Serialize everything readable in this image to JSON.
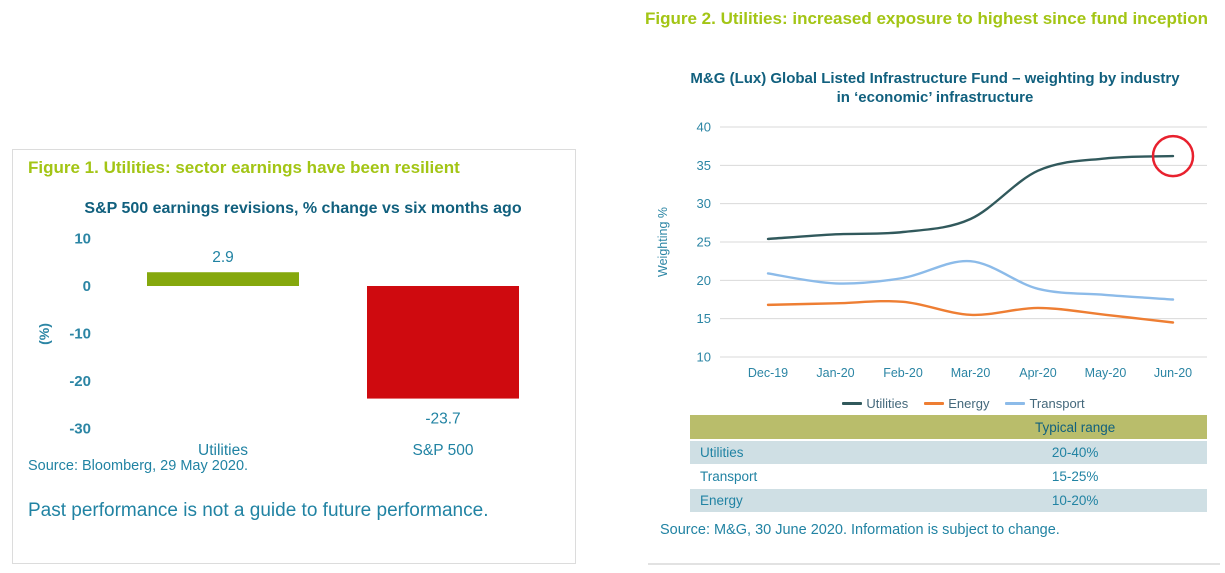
{
  "figure1": {
    "title": "Figure 1. Utilities: sector earnings have been resilient",
    "source": "Source: Bloomberg, 29 May 2020.",
    "disclaimer": "Past performance is not a guide to future performance."
  },
  "figure2": {
    "title": "Figure 2. Utilities: increased exposure to highest since fund inception",
    "table": {
      "header": [
        "",
        "Typical range"
      ],
      "rows": [
        [
          "Utilities",
          "20-40%"
        ],
        [
          "Transport",
          "15-25%"
        ],
        [
          "Energy",
          "10-20%"
        ]
      ]
    },
    "source": "Source: M&G, 30 June 2020. Information is subject to change."
  },
  "chart_data": [
    {
      "type": "bar",
      "title": "S&P 500 earnings revisions, % change vs six months ago",
      "categories": [
        "Utilities",
        "S&P 500"
      ],
      "values": [
        2.9,
        -23.7
      ],
      "data_labels": [
        "2.9",
        "-23.7"
      ],
      "bar_colors": [
        "#85a80d",
        "#cf0a0f"
      ],
      "ylabel": "(%)",
      "yticks": [
        10,
        0,
        -10,
        -20,
        -30
      ],
      "ylim": [
        -30,
        10
      ],
      "grid": false,
      "legend_position": "none"
    },
    {
      "type": "line",
      "title": "M&G (Lux) Global Listed Infrastructure Fund – weighting by industry in ‘economic’ infrastructure",
      "x": [
        "Dec-19",
        "Jan-20",
        "Feb-20",
        "Mar-20",
        "Apr-20",
        "May-20",
        "Jun-20"
      ],
      "series": [
        {
          "name": "Utilities",
          "color": "#31595c",
          "values": [
            25.4,
            26.0,
            26.3,
            28.0,
            34.3,
            35.9,
            36.2
          ]
        },
        {
          "name": "Energy",
          "color": "#ee7e33",
          "values": [
            16.8,
            17.0,
            17.2,
            15.5,
            16.4,
            15.5,
            14.5
          ]
        },
        {
          "name": "Transport",
          "color": "#8cbbe9",
          "values": [
            20.9,
            19.6,
            20.3,
            22.5,
            18.9,
            18.1,
            17.5
          ]
        }
      ],
      "ylabel": "Weighting %",
      "yticks": [
        40,
        35,
        30,
        25,
        20,
        15,
        10
      ],
      "ylim": [
        10,
        40
      ],
      "grid": true,
      "legend_position": "bottom",
      "annotation": {
        "type": "circle",
        "series": "Utilities",
        "x": "Jun-20",
        "color": "#e8212e",
        "meaning": "highest weighting since fund inception"
      }
    }
  ],
  "colors": {
    "figure_title_green": "#a3c515",
    "heading_teal": "#11607e",
    "body_teal": "#2183a3",
    "axis_teal": "#2b85a4",
    "legend_text": "#44687b",
    "grid_gray": "#d9d9d9",
    "panel_border": "#dcdcdc",
    "table_header_bg": "#b9bd6b",
    "table_alt_row_bg": "#cfdfe4",
    "annotation_red": "#e8212e"
  }
}
